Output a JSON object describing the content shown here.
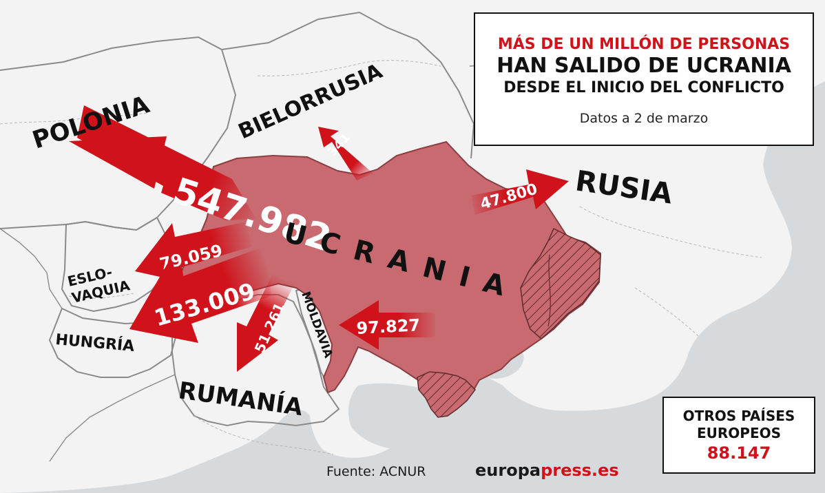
{
  "title": {
    "line1": "MÁS DE UN MILLÓN DE PERSONAS",
    "line2": "HAN SALIDO DE UCRANIA",
    "line3": "DESDE EL INICIO DEL CONFLICTO",
    "date_note": "Datos a 2 de marzo"
  },
  "countries": {
    "ukraine": "UCRANIA",
    "poland": "POLONIA",
    "belarus": "BIELORRUSIA",
    "russia": "RUSIA",
    "slovakia_line1": "ESLO-",
    "slovakia_line2": "VAQUIA",
    "hungary": "HUNGRÍA",
    "romania": "RUMANÍA",
    "moldova": "MOLDAVIA"
  },
  "flows": {
    "poland": "547.982",
    "belarus": "341",
    "russia": "47.800",
    "slovakia": "79.059",
    "hungary": "133.009",
    "romania": "51.261",
    "moldova": "97.827"
  },
  "others": {
    "label_line1": "OTROS PAÍSES",
    "label_line2": "EUROPEOS",
    "value": "88.147"
  },
  "source": "Fuente: ACNUR",
  "brand": {
    "part1": "europa",
    "part2": "press.es"
  },
  "colors": {
    "arrow_red": "#d0121b",
    "ukraine_fill": "#c86a6f",
    "sea": "#d7dadd",
    "land": "#f3f3f3"
  }
}
